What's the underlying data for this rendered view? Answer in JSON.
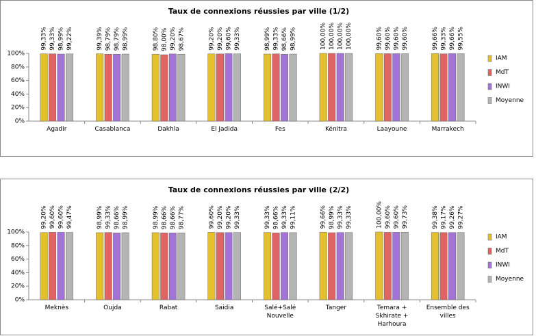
{
  "chart_data": [
    {
      "type": "bar",
      "title": "Taux de connexions réussies par ville (1/2)",
      "categories": [
        "Agadir",
        "Casablanca",
        "Dakhla",
        "El Jadida",
        "Fes",
        "Kénitra",
        "Laayoune",
        "Marrakech"
      ],
      "series": [
        {
          "name": "IAM",
          "color": "#e3c02c",
          "values": [
            99.33,
            99.39,
            98.8,
            99.2,
            98.99,
            100.0,
            99.6,
            99.66
          ],
          "value_labels": [
            "99,33%",
            "99,39%",
            "98,80%",
            "99,20%",
            "98,99%",
            "100,00%",
            "99,60%",
            "99,66%"
          ]
        },
        {
          "name": "MdT",
          "color": "#e06464",
          "values": [
            99.33,
            98.79,
            98.0,
            99.2,
            99.33,
            100.0,
            99.6,
            99.33
          ],
          "value_labels": [
            "99,33%",
            "98,79%",
            "98,00%",
            "99,20%",
            "99,33%",
            "100,00%",
            "99,60%",
            "99,33%"
          ]
        },
        {
          "name": "INWI",
          "color": "#a374d6",
          "values": [
            98.99,
            98.79,
            99.2,
            99.6,
            98.66,
            100.0,
            99.6,
            99.66
          ],
          "value_labels": [
            "98,99%",
            "98,79%",
            "99,20%",
            "99,60%",
            "98,66%",
            "100,00%",
            "99,60%",
            "99,66%"
          ]
        },
        {
          "name": "Moyenne",
          "color": "#b4b4b4",
          "values": [
            99.22,
            98.99,
            98.67,
            99.33,
            98.99,
            100.0,
            99.6,
            99.55
          ],
          "value_labels": [
            "99,22%",
            "98,99%",
            "98,67%",
            "99,33%",
            "98,99%",
            "100,00%",
            "99,60%",
            "99,55%"
          ]
        }
      ],
      "ylim": [
        0,
        100
      ],
      "yticks": [
        {
          "value": 0,
          "label": "0%"
        },
        {
          "value": 20,
          "label": "20%"
        },
        {
          "value": 40,
          "label": "40%"
        },
        {
          "value": 60,
          "label": "60%"
        },
        {
          "value": 80,
          "label": "80%"
        },
        {
          "value": 100,
          "label": "100%"
        }
      ],
      "legend": "right"
    },
    {
      "type": "bar",
      "title": "Taux de connexions réussies par ville (2/2)",
      "categories": [
        "Meknès",
        "Oujda",
        "Rabat",
        "Saidia",
        "Salé+Salé Nouvelle",
        "Tanger",
        "Temara + Skhirate + Harhoura",
        "Ensemble des villes"
      ],
      "series": [
        {
          "name": "IAM",
          "color": "#e3c02c",
          "values": [
            99.2,
            98.99,
            98.99,
            99.6,
            99.33,
            99.66,
            100.0,
            99.38
          ],
          "value_labels": [
            "99,20%",
            "98,99%",
            "98,99%",
            "99,60%",
            "99,33%",
            "99,66%",
            "100,00%",
            "99,38%"
          ]
        },
        {
          "name": "MdT",
          "color": "#e06464",
          "values": [
            99.6,
            99.33,
            98.66,
            99.2,
            98.66,
            98.99,
            99.6,
            99.17
          ],
          "value_labels": [
            "99,60%",
            "99,33%",
            "98,66%",
            "99,20%",
            "98,66%",
            "98,99%",
            "99,60%",
            "99,17%"
          ]
        },
        {
          "name": "INWI",
          "color": "#a374d6",
          "values": [
            99.6,
            98.66,
            98.66,
            99.2,
            99.33,
            99.33,
            99.6,
            99.26
          ],
          "value_labels": [
            "99,60%",
            "98,66%",
            "98,66%",
            "99,20%",
            "99,33%",
            "99,33%",
            "99,60%",
            "99,26%"
          ]
        },
        {
          "name": "Moyenne",
          "color": "#b4b4b4",
          "values": [
            99.47,
            98.99,
            98.77,
            99.33,
            99.11,
            99.33,
            99.73,
            99.27
          ],
          "value_labels": [
            "99,47%",
            "98,99%",
            "98,77%",
            "99,33%",
            "99,11%",
            "99,33%",
            "99,73%",
            "99,27%"
          ]
        }
      ],
      "ylim": [
        0,
        100
      ],
      "yticks": [
        {
          "value": 0,
          "label": "0%"
        },
        {
          "value": 20,
          "label": "20%"
        },
        {
          "value": 40,
          "label": "40%"
        },
        {
          "value": 60,
          "label": "60%"
        },
        {
          "value": 80,
          "label": "80%"
        },
        {
          "value": 100,
          "label": "100%"
        }
      ],
      "legend": "right"
    }
  ]
}
